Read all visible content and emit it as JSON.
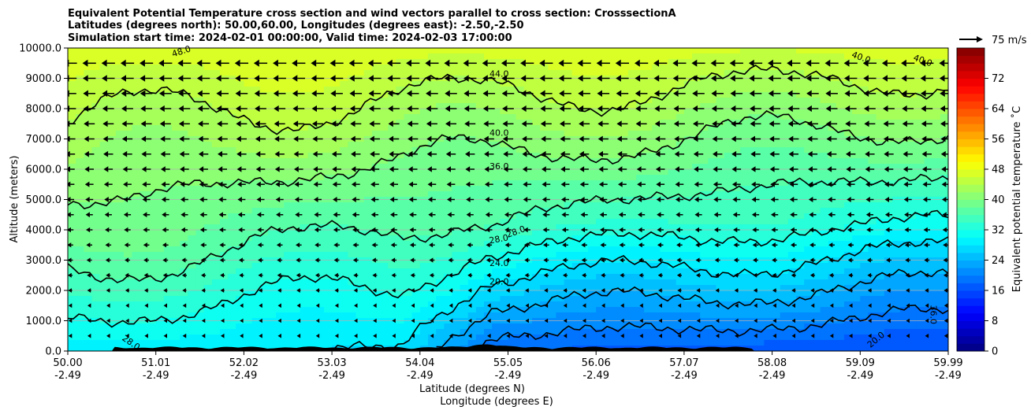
{
  "chart_data": {
    "type": "contour",
    "title_lines": [
      "Equivalent Potential Temperature cross section and wind vectors parallel to cross section: CrosssectionA",
      "Latitudes (degrees north): 50.00,60.00, Longitudes (degrees east): -2.50,-2.50",
      "Simulation start time: 2024-02-01 00:00:00, Valid time: 2024-02-03 17:00:00"
    ],
    "xlabel_lines": [
      "Latitude (degrees N)",
      "Longitude (degrees E)"
    ],
    "ylabel": "Altitude (meters)",
    "x_ticks": [
      {
        "lat": "50.00",
        "lon": "-2.49"
      },
      {
        "lat": "51.01",
        "lon": "-2.49"
      },
      {
        "lat": "52.02",
        "lon": "-2.49"
      },
      {
        "lat": "53.03",
        "lon": "-2.49"
      },
      {
        "lat": "54.04",
        "lon": "-2.49"
      },
      {
        "lat": "55.05",
        "lon": "-2.49"
      },
      {
        "lat": "56.06",
        "lon": "-2.49"
      },
      {
        "lat": "57.07",
        "lon": "-2.49"
      },
      {
        "lat": "58.08",
        "lon": "-2.49"
      },
      {
        "lat": "59.09",
        "lon": "-2.49"
      },
      {
        "lat": "59.99",
        "lon": "-2.49"
      }
    ],
    "y_ticks": [
      "0.0",
      "1000.0",
      "2000.0",
      "3000.0",
      "4000.0",
      "5000.0",
      "6000.0",
      "7000.0",
      "8000.0",
      "9000.0",
      "10000.0"
    ],
    "ylim": [
      0,
      10000
    ],
    "grid": "horizontal",
    "colorbar": {
      "label": "Equivalent potential temperature ˚C",
      "range": [
        0,
        80
      ],
      "ticks": [
        "0",
        "8",
        "16",
        "24",
        "32",
        "40",
        "48",
        "56",
        "64",
        "72"
      ],
      "colormap": "jet"
    },
    "wind_key": {
      "label": "75 m/s"
    },
    "contour_labels": [
      "48.0",
      "44.0",
      "40.0",
      "36.0",
      "28.0",
      "28.0",
      "24.0",
      "20.0",
      "28.0",
      "20.0",
      "36.0",
      "40.0",
      "40.0"
    ],
    "contour_levels": [
      20,
      24,
      28,
      32,
      36,
      40,
      44,
      48
    ],
    "wind_direction": "toward decreasing latitude (southward), stronger aloft"
  }
}
